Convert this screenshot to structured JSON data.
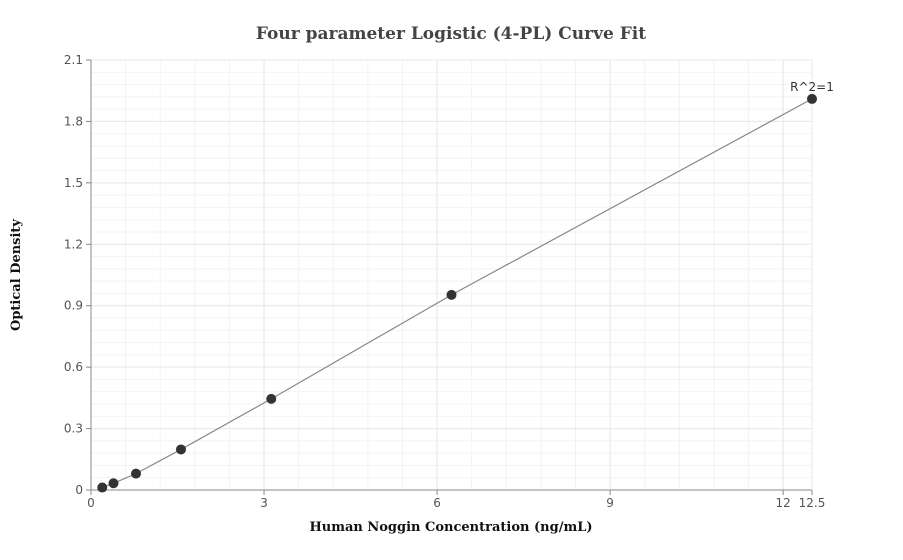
{
  "chart_data": {
    "type": "scatter",
    "title": "Four parameter Logistic (4-PL) Curve Fit",
    "xlabel": "Human Noggin Concentration (ng/mL)",
    "ylabel": "Optical Density",
    "xlim": [
      0,
      12.5
    ],
    "ylim": [
      0,
      2.1
    ],
    "x_ticks": [
      0,
      3,
      6,
      9,
      12,
      12.5
    ],
    "y_ticks": [
      0,
      0.3,
      0.6,
      0.9,
      1.2,
      1.5,
      1.8,
      2.1
    ],
    "x_tick_labels": [
      "0",
      "3",
      "6",
      "9",
      "12",
      "12.5"
    ],
    "y_tick_labels": [
      "0",
      "0.3",
      "0.6",
      "0.9",
      "1.2",
      "1.5",
      "1.8",
      "2.1"
    ],
    "series": [
      {
        "points": [
          {
            "x": 0.195,
            "y": 0.012
          },
          {
            "x": 0.39,
            "y": 0.033
          },
          {
            "x": 0.78,
            "y": 0.08
          },
          {
            "x": 1.56,
            "y": 0.198
          },
          {
            "x": 3.125,
            "y": 0.445
          },
          {
            "x": 6.25,
            "y": 0.953
          },
          {
            "x": 12.5,
            "y": 1.91
          }
        ],
        "color": "#333333"
      }
    ],
    "fit_curve": {
      "x": [
        0.195,
        0.39,
        0.78,
        1.56,
        3.125,
        6.25,
        12.5
      ],
      "y": [
        0.012,
        0.033,
        0.08,
        0.198,
        0.445,
        0.953,
        1.91
      ],
      "color": "#888888"
    },
    "annotations": [
      {
        "text": "R^2=1",
        "x": 12.5,
        "y": 1.91
      }
    ],
    "grid": true,
    "grid_color": "#e8e8e8",
    "minor_grid_color": "#f3f3f3",
    "axis_color": "#888888",
    "background_color": "#ffffff"
  }
}
